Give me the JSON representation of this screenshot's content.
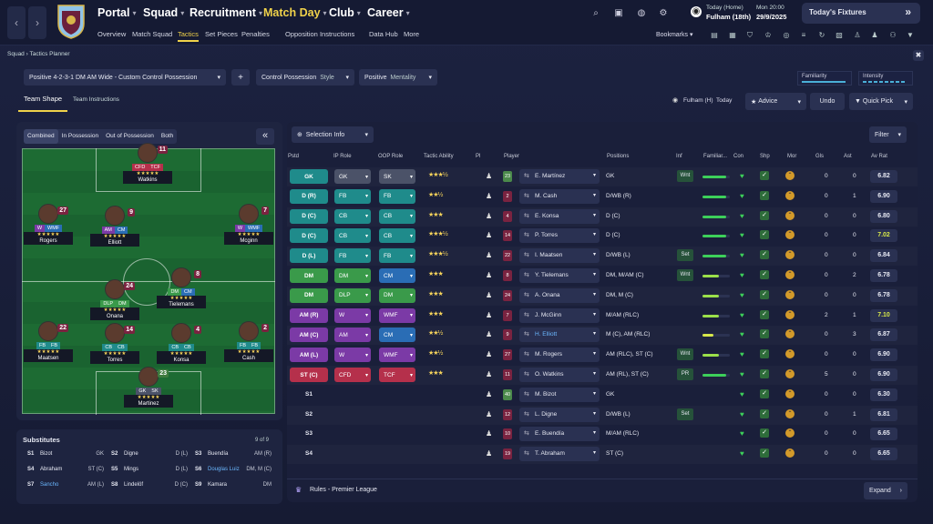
{
  "nav": {
    "back": "‹",
    "forward": "›",
    "main": [
      {
        "label": "Portal"
      },
      {
        "label": "Squad"
      },
      {
        "label": "Recruitment"
      },
      {
        "label": "Match Day"
      },
      {
        "label": "Club"
      },
      {
        "label": "Career"
      }
    ],
    "sub": [
      "Overview",
      "Match Squad",
      "Tactics",
      "Set Pieces",
      "Penalties",
      "Opposition Instructions",
      "Data Hub",
      "More"
    ],
    "next_match": {
      "line1": "Today (Home)",
      "line2": "Fulham (18th)"
    },
    "date": {
      "time": "Mon 20:00",
      "day": "29/9/2025"
    },
    "fixtures_label": "Today's Fixtures",
    "bookmarks": "Bookmarks"
  },
  "breadcrumb": {
    "root": "Squad",
    "current": "Tactics Planner"
  },
  "toolbar": {
    "tactic": "Positive 4-2-3-1 DM AM Wide - Custom Control Possession",
    "add": "+",
    "style_value": "Control Possession",
    "style_label": "Style",
    "mentality_value": "Positive",
    "mentality_label": "Mentality",
    "familiarity": "Familiarity",
    "intensity": "Intensity"
  },
  "tabs": {
    "team_shape": "Team Shape",
    "team_instructions": "Team Instructions"
  },
  "opponent": {
    "name": "Fulham (H)",
    "when": "Today"
  },
  "buttons": {
    "advice": "Advice",
    "undo": "Undo",
    "quick_pick": "Quick Pick",
    "selection_info": "Selection Info",
    "filter": "Filter",
    "expand": "Expand",
    "collapse": "«"
  },
  "view_toggle": [
    "Combined",
    "In Possession",
    "Out of Possession",
    "Both"
  ],
  "pitch_players": [
    {
      "num": "11",
      "name": "Watkins",
      "roles": [
        "CFD",
        "TCF"
      ],
      "stars": "★★★★★"
    },
    {
      "num": "27",
      "name": "Rogers",
      "roles": [
        "W",
        "WMF"
      ],
      "stars": "★★★★★"
    },
    {
      "num": "9",
      "name": "Elliott",
      "roles": [
        "AM",
        "CM"
      ],
      "stars": "★★★★★"
    },
    {
      "num": "7",
      "name": "Mcginn",
      "roles": [
        "W",
        "WMF"
      ],
      "stars": "★★★★★"
    },
    {
      "num": "24",
      "name": "Onana",
      "roles": [
        "DLP",
        "DM"
      ],
      "stars": "★★★★★"
    },
    {
      "num": "8",
      "name": "Tielemans",
      "roles": [
        "DM",
        "CM"
      ],
      "stars": "★★★★★"
    },
    {
      "num": "22",
      "name": "Maatsen",
      "roles": [
        "FB",
        "FB"
      ],
      "stars": "★★★★★"
    },
    {
      "num": "14",
      "name": "Torres",
      "roles": [
        "CB",
        "CB"
      ],
      "stars": "★★★★★"
    },
    {
      "num": "4",
      "name": "Konsa",
      "roles": [
        "CB",
        "CB"
      ],
      "stars": "★★★★★"
    },
    {
      "num": "2",
      "name": "Cash",
      "roles": [
        "FB",
        "FB"
      ],
      "stars": "★★★★★"
    },
    {
      "num": "23",
      "name": "Martinez",
      "roles": [
        "GK",
        "SK"
      ],
      "stars": "★★★★★"
    }
  ],
  "subs": {
    "title": "Substitutes",
    "count": "9 of 9",
    "rows": [
      {
        "slot": "S1",
        "name": "Bizot",
        "pos": "GK"
      },
      {
        "slot": "S2",
        "name": "Digne",
        "pos": "D (L)"
      },
      {
        "slot": "S3",
        "name": "Buendía",
        "pos": "AM (R)"
      },
      {
        "slot": "S4",
        "name": "Abraham",
        "pos": "ST (C)"
      },
      {
        "slot": "S5",
        "name": "Mings",
        "pos": "D (L)"
      },
      {
        "slot": "S6",
        "name": "Douglas Luiz",
        "pos": "DM, M (C)"
      },
      {
        "slot": "S7",
        "name": "Sancho",
        "pos": "AM (L)"
      },
      {
        "slot": "S8",
        "name": "Lindelöf",
        "pos": "D (C)"
      },
      {
        "slot": "S9",
        "name": "Kamara",
        "pos": "DM"
      }
    ]
  },
  "table": {
    "headers": [
      "Pstd",
      "IP Role",
      "OOP Role",
      "Tactic Ability",
      "Pl",
      "Player",
      "Positions",
      "Inf",
      "Familiar...",
      "Con",
      "Shp",
      "Mor",
      "Gls",
      "Ast",
      "Av Rat"
    ],
    "rows": [
      {
        "pos": "GK",
        "ip": "GK",
        "oop": "SK",
        "stars": "★★★½",
        "num": "23",
        "player": "E. Martínez",
        "positions": "GK",
        "inf": "Wnt",
        "fam": 0.85,
        "gls": "0",
        "ast": "0",
        "rat": "6.82"
      },
      {
        "pos": "D (R)",
        "ip": "FB",
        "oop": "FB",
        "stars": "★★½",
        "num": "2",
        "player": "M. Cash",
        "positions": "D/WB (R)",
        "inf": "",
        "fam": 0.85,
        "gls": "0",
        "ast": "1",
        "rat": "6.90"
      },
      {
        "pos": "D (C)",
        "ip": "CB",
        "oop": "CB",
        "stars": "★★★",
        "num": "4",
        "player": "E. Konsa",
        "positions": "D (C)",
        "inf": "",
        "fam": 0.85,
        "gls": "0",
        "ast": "0",
        "rat": "6.80"
      },
      {
        "pos": "D (C)",
        "ip": "CB",
        "oop": "CB",
        "stars": "★★★½",
        "num": "14",
        "player": "P. Torres",
        "positions": "D (C)",
        "inf": "",
        "fam": 0.85,
        "gls": "0",
        "ast": "0",
        "rat": "7.02"
      },
      {
        "pos": "D (L)",
        "ip": "FB",
        "oop": "FB",
        "stars": "★★★½",
        "num": "22",
        "player": "I. Maatsen",
        "positions": "D/WB (L)",
        "inf": "Set",
        "fam": 0.85,
        "gls": "0",
        "ast": "0",
        "rat": "6.84"
      },
      {
        "pos": "DM",
        "ip": "DM",
        "oop": "CM",
        "stars": "★★★",
        "num": "8",
        "player": "Y. Tielemans",
        "positions": "DM, M/AM (C)",
        "inf": "Wnt",
        "fam": 0.6,
        "gls": "0",
        "ast": "2",
        "rat": "6.78"
      },
      {
        "pos": "DM",
        "ip": "DLP",
        "oop": "DM",
        "stars": "★★★",
        "num": "24",
        "player": "A. Onana",
        "positions": "DM, M (C)",
        "inf": "",
        "fam": 0.6,
        "gls": "0",
        "ast": "0",
        "rat": "6.78"
      },
      {
        "pos": "AM (R)",
        "ip": "W",
        "oop": "WMF",
        "stars": "★★★",
        "num": "7",
        "player": "J. McGinn",
        "positions": "M/AM (RLC)",
        "inf": "",
        "fam": 0.6,
        "gls": "2",
        "ast": "1",
        "rat": "7.10"
      },
      {
        "pos": "AM (C)",
        "ip": "AM",
        "oop": "CM",
        "stars": "★★½",
        "num": "9",
        "player": "H. Elliott",
        "positions": "M (C), AM (RLC)",
        "inf": "",
        "fam": 0.4,
        "gls": "0",
        "ast": "3",
        "rat": "6.87"
      },
      {
        "pos": "AM (L)",
        "ip": "W",
        "oop": "WMF",
        "stars": "★★½",
        "num": "27",
        "player": "M. Rogers",
        "positions": "AM (RLC), ST (C)",
        "inf": "Wnt",
        "fam": 0.6,
        "gls": "0",
        "ast": "0",
        "rat": "6.90"
      },
      {
        "pos": "ST (C)",
        "ip": "CFD",
        "oop": "TCF",
        "stars": "★★★",
        "num": "11",
        "player": "O. Watkins",
        "positions": "AM (RL), ST (C)",
        "inf": "PR",
        "fam": 0.85,
        "gls": "5",
        "ast": "0",
        "rat": "6.90"
      },
      {
        "pos": "S1",
        "ip": "",
        "oop": "",
        "stars": "",
        "num": "40",
        "player": "M. Bizot",
        "positions": "GK",
        "inf": "",
        "fam": 0,
        "gls": "0",
        "ast": "0",
        "rat": "6.30"
      },
      {
        "pos": "S2",
        "ip": "",
        "oop": "",
        "stars": "",
        "num": "12",
        "player": "L. Digne",
        "positions": "D/WB (L)",
        "inf": "Set",
        "fam": 0,
        "gls": "0",
        "ast": "1",
        "rat": "6.81"
      },
      {
        "pos": "S3",
        "ip": "",
        "oop": "",
        "stars": "",
        "num": "10",
        "player": "E. Buendía",
        "positions": "M/AM (RLC)",
        "inf": "",
        "fam": 0,
        "gls": "0",
        "ast": "0",
        "rat": "6.65"
      },
      {
        "pos": "S4",
        "ip": "",
        "oop": "",
        "stars": "",
        "num": "19",
        "player": "T. Abraham",
        "positions": "ST (C)",
        "inf": "",
        "fam": 0,
        "gls": "0",
        "ast": "0",
        "rat": "6.65"
      }
    ]
  },
  "footer": {
    "rules": "Rules - Premier League"
  }
}
